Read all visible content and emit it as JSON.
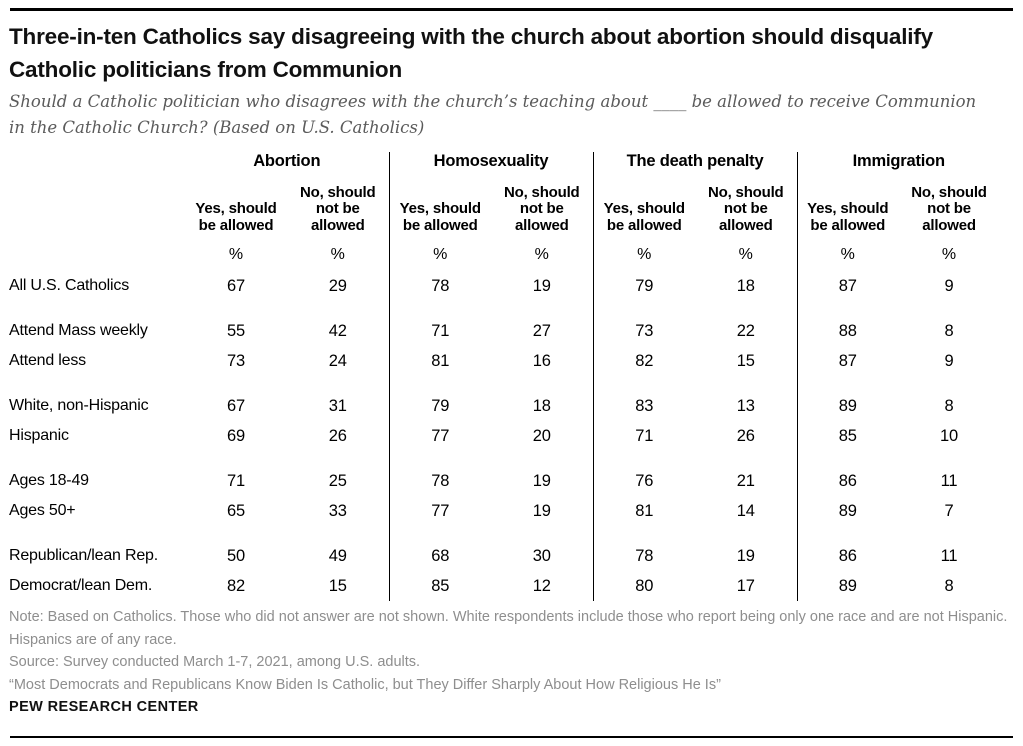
{
  "header": {
    "title": "Three-in-ten Catholics say disagreeing with the church about abortion should disqualify Catholic politicians from Communion",
    "subtitle": "Should a Catholic politician who disagrees with the church’s teaching about ____ be allowed to receive Communion in the Catholic Church? (Based on U.S. Catholics)"
  },
  "chart_data": {
    "type": "table",
    "title": "Three-in-ten Catholics say disagreeing with the church about abortion should disqualify Catholic politicians from Communion",
    "unit": "%",
    "column_groups": [
      "Abortion",
      "Homosexuality",
      "The death penalty",
      "Immigration"
    ],
    "sub_columns": [
      "Yes, should be allowed",
      "No, should not be allowed"
    ],
    "percent_symbol": "%",
    "row_sections": [
      [
        {
          "label": "All U.S. Catholics",
          "values": [
            67,
            29,
            78,
            19,
            79,
            18,
            87,
            9
          ]
        }
      ],
      [
        {
          "label": "Attend Mass weekly",
          "values": [
            55,
            42,
            71,
            27,
            73,
            22,
            88,
            8
          ]
        },
        {
          "label": "Attend less",
          "values": [
            73,
            24,
            81,
            16,
            82,
            15,
            87,
            9
          ]
        }
      ],
      [
        {
          "label": "White, non-Hispanic",
          "values": [
            67,
            31,
            79,
            18,
            83,
            13,
            89,
            8
          ]
        },
        {
          "label": "Hispanic",
          "values": [
            69,
            26,
            77,
            20,
            71,
            26,
            85,
            10
          ]
        }
      ],
      [
        {
          "label": "Ages 18-49",
          "values": [
            71,
            25,
            78,
            19,
            76,
            21,
            86,
            11
          ]
        },
        {
          "label": "Ages 50+",
          "values": [
            65,
            33,
            77,
            19,
            81,
            14,
            89,
            7
          ]
        }
      ],
      [
        {
          "label": "Republican/lean Rep.",
          "values": [
            50,
            49,
            68,
            30,
            78,
            19,
            86,
            11
          ]
        },
        {
          "label": "Democrat/lean Dem.",
          "values": [
            82,
            15,
            85,
            12,
            80,
            17,
            89,
            8
          ]
        }
      ]
    ]
  },
  "footer": {
    "note": "Note: Based on Catholics. Those who did not answer are not shown. White respondents include those who report being only one race and are not Hispanic. Hispanics are of any race.",
    "source": "Source: Survey conducted March 1-7, 2021, among U.S. adults.",
    "quote": "“Most Democrats and Republicans Know Biden Is Catholic, but They Differ Sharply About How Religious He Is”",
    "brand": "PEW RESEARCH CENTER"
  }
}
